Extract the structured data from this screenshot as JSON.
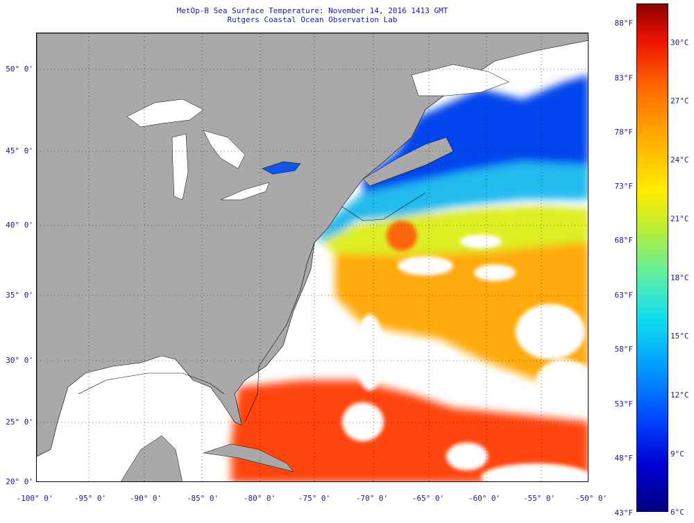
{
  "title": {
    "line1": "MetOp-B Sea Surface Temperature:  November 14, 2016 1413 GMT",
    "line2": "Rutgers Coastal Ocean Observation Lab"
  },
  "map": {
    "lat_labels": [
      "50° 0'",
      "45° 0'",
      "40° 0'",
      "35° 0'",
      "30° 0'",
      "25° 0'",
      "20° 0'"
    ],
    "lon_labels": [
      "-100° 0'",
      "-95° 0'",
      "-90° 0'",
      "-85° 0'",
      "-80° 0'",
      "-75° 0'",
      "-70° 0'",
      "-65° 0'",
      "-60° 0'",
      "-55° 0'",
      "-50° 0'"
    ],
    "colors": {
      "land": "#a9a9a9",
      "no_data": "#ffffff",
      "grid": "#000000"
    }
  },
  "colorbar": {
    "fahrenheit_labels": [
      "88°F",
      "83°F",
      "78°F",
      "73°F",
      "68°F",
      "63°F",
      "58°F",
      "53°F",
      "48°F",
      "43°F"
    ],
    "celsius_labels": [
      "30°C",
      "27°C",
      "24°C",
      "21°C",
      "18°C",
      "15°C",
      "12°C",
      "9°C",
      "6°C"
    ]
  }
}
